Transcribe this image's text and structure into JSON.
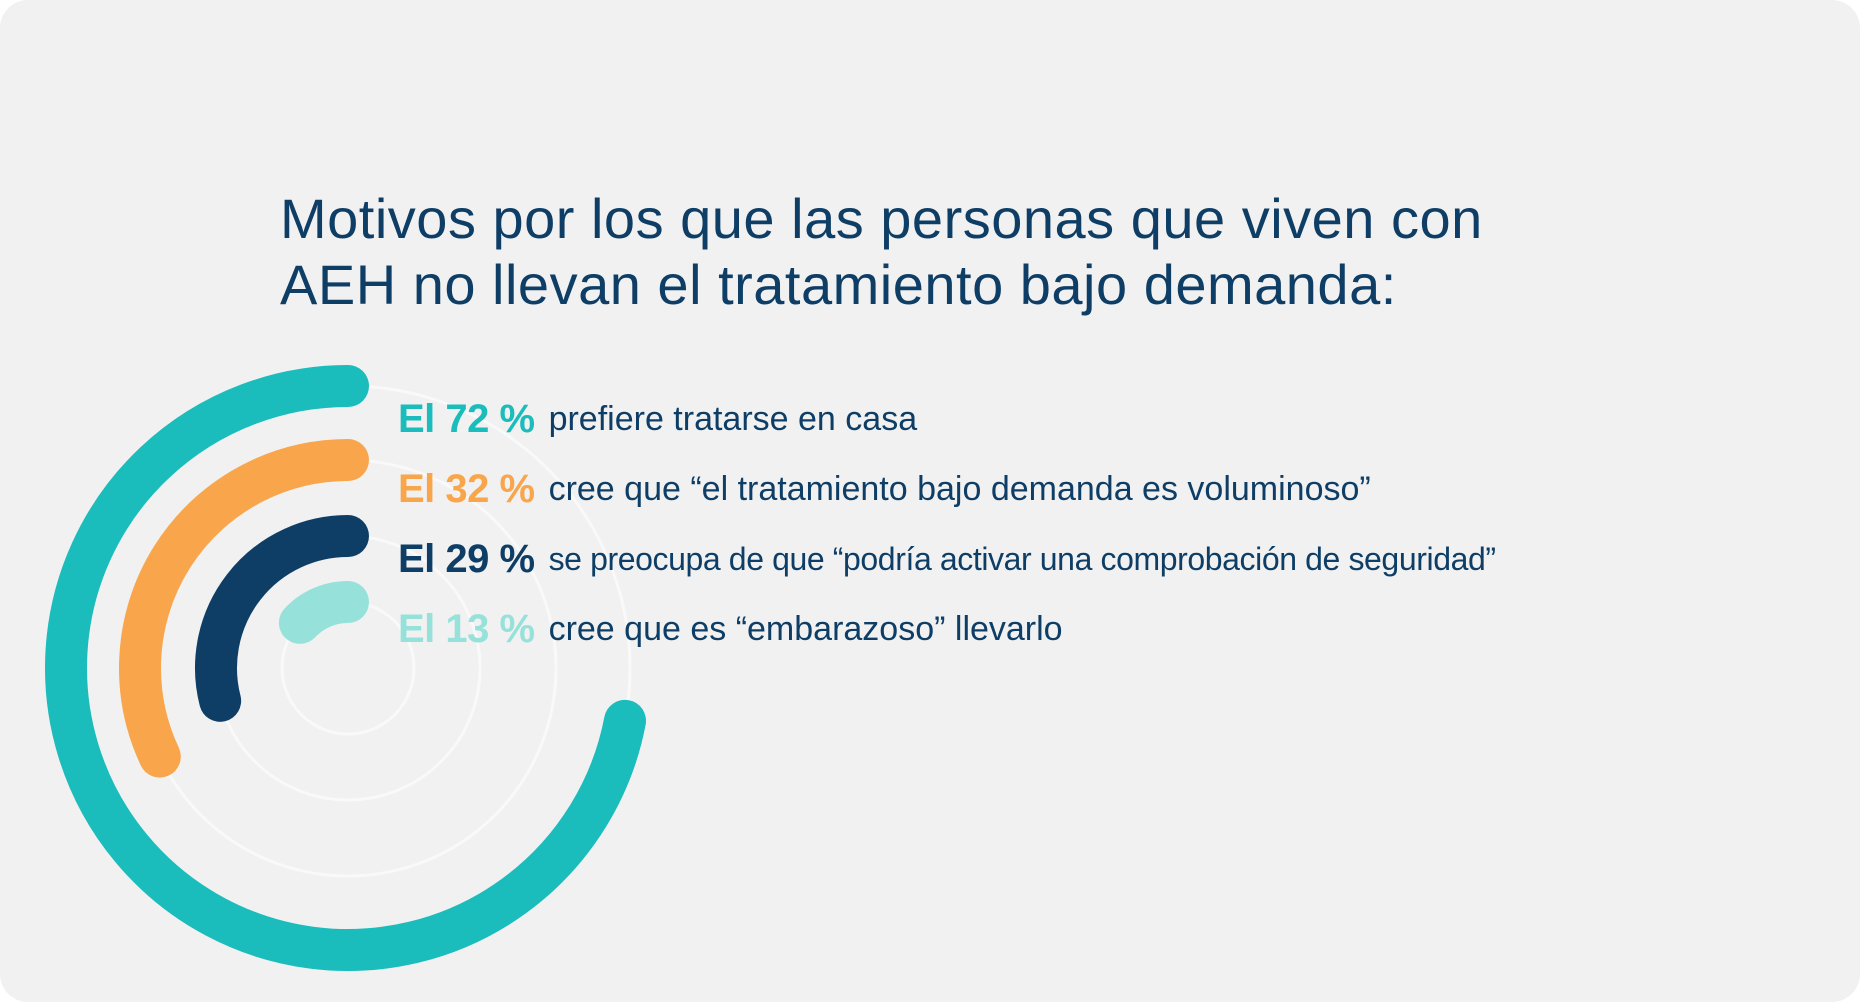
{
  "chart_data": {
    "type": "radial-bar",
    "title_lines": [
      "Motivos por los que las personas que viven con",
      "AEH no llevan el tratamiento bajo demanda:"
    ],
    "series": [
      {
        "label": "El 72 %",
        "value": 72,
        "text": "prefiere tratarse en casa",
        "color": "#1bbcbc"
      },
      {
        "label": "El 32 %",
        "value": 32,
        "text": "cree que “el tratamiento bajo demanda es voluminoso”",
        "color": "#f8a54b"
      },
      {
        "label": "El 29 %",
        "value": 29,
        "text": "se preocupa de que “podría activar una comprobación de seguridad”",
        "color": "#0e3e66"
      },
      {
        "label": "El 13 %",
        "value": 13,
        "text": "cree que es “embarazoso” llevarlo",
        "color": "#96e2da"
      }
    ],
    "text_color": "#0e3e66",
    "background_color": "#f1f1f1"
  }
}
